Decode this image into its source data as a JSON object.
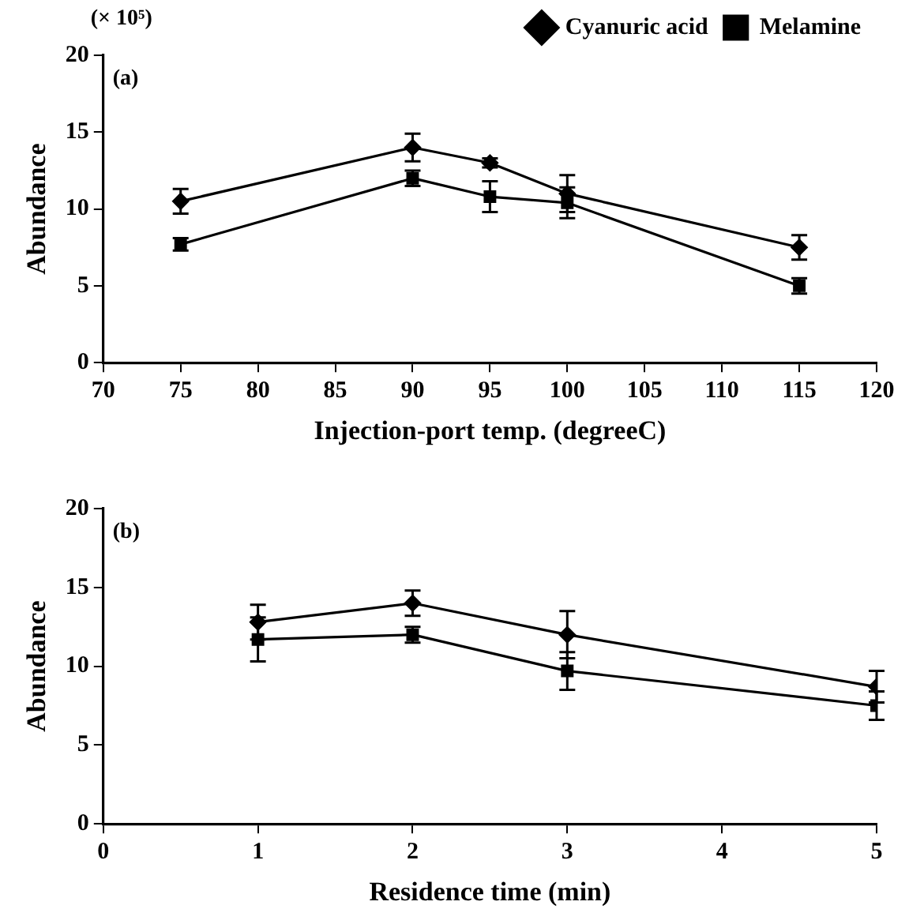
{
  "chart_data": [
    {
      "type": "line",
      "xlabel": "Injection-port temp. (degreeC)",
      "ylabel": "Abundance",
      "annotations": [
        "(× 10⁵)",
        "(a)"
      ],
      "legend": "top right",
      "line_style": "solid",
      "grid": false,
      "x": [
        75,
        90,
        95,
        100,
        115
      ],
      "xlim": [
        70,
        120
      ],
      "xticks": [
        70,
        75,
        80,
        85,
        90,
        95,
        100,
        105,
        110,
        115,
        120
      ],
      "ylim": [
        0,
        20
      ],
      "yticks": [
        0,
        5,
        10,
        15,
        20
      ],
      "series": [
        {
          "name": "Cyanuric acid",
          "color": "#000000",
          "marker": "diamond",
          "values": [
            10.5,
            14.0,
            13.0,
            11.0,
            7.5
          ],
          "errors": [
            0.8,
            0.9,
            0.3,
            1.2,
            0.8
          ]
        },
        {
          "name": "Melamine",
          "color": "#000000",
          "marker": "square",
          "values": [
            7.7,
            12.0,
            10.8,
            10.4,
            5.0
          ],
          "errors": [
            0.4,
            0.5,
            1.0,
            1.0,
            0.5
          ]
        }
      ]
    },
    {
      "type": "line",
      "xlabel": "Residence time (min)",
      "ylabel": "Abundance",
      "annotations": [
        "(b)"
      ],
      "legend": false,
      "line_style": "solid",
      "grid": false,
      "x": [
        1,
        2,
        3,
        5
      ],
      "xlim": [
        0,
        5
      ],
      "xticks": [
        0,
        1,
        2,
        3,
        4,
        5
      ],
      "ylim": [
        0,
        20
      ],
      "yticks": [
        0,
        5,
        10,
        15,
        20
      ],
      "series": [
        {
          "color": "#000000",
          "marker": "diamond",
          "values": [
            12.8,
            14.0,
            12.0,
            8.7
          ],
          "errors": [
            1.1,
            0.8,
            1.5,
            1.0
          ]
        },
        {
          "color": "#000000",
          "marker": "square",
          "values": [
            11.7,
            12.0,
            9.7,
            7.5
          ],
          "errors": [
            1.4,
            0.5,
            1.2,
            0.9
          ]
        }
      ]
    }
  ]
}
